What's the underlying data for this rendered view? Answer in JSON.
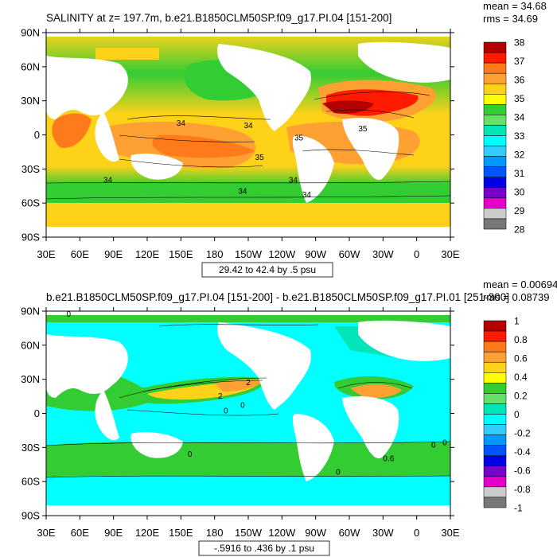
{
  "colors": {
    "ocean_fill_top": "#f5e61e",
    "ocean_fill_bottom": "#33cc33",
    "land": "#ffffff",
    "frame": "#000000"
  },
  "panels": [
    {
      "id": "top",
      "title": "SALINITY at z= 197.7m, b.e21.B1850CLM50SP.f09_g17.PI.04 [151-200]",
      "stats": [
        "mean = 34.68",
        "rms = 34.69"
      ],
      "y_ticks": [
        "90N",
        "60N",
        "30N",
        "0",
        "30S",
        "60S",
        "90S"
      ],
      "x_ticks": [
        "30E",
        "60E",
        "90E",
        "120E",
        "150E",
        "180",
        "150W",
        "120W",
        "90W",
        "60W",
        "30W",
        "0",
        "30E"
      ],
      "range_label": "29.42 to 42.4 by .5 psu",
      "colorbar": {
        "labels": [
          "38",
          "37",
          "36",
          "35",
          "34",
          "33",
          "32",
          "31",
          "30",
          "29",
          "28"
        ],
        "colors": [
          "#b30000",
          "#ff1a00",
          "#ff7a1a",
          "#ffa033",
          "#ffd21a",
          "#ffff00",
          "#33cc33",
          "#66e066",
          "#00e6b8",
          "#00ffff",
          "#33ccff",
          "#0099ff",
          "#0055ff",
          "#0000e6",
          "#7a00cc",
          "#e600cc",
          "#cccccc",
          "#777777"
        ]
      },
      "contour_labels": [
        {
          "text": "34",
          "lon": 150,
          "lat": 8
        },
        {
          "text": "34",
          "lon": 210,
          "lat": 6
        },
        {
          "text": "35",
          "lon": 255,
          "lat": -5
        },
        {
          "text": "35",
          "lon": 220,
          "lat": -22
        },
        {
          "text": "34",
          "lon": 85,
          "lat": -42
        },
        {
          "text": "34",
          "lon": 250,
          "lat": -42
        },
        {
          "text": "34",
          "lon": 205,
          "lat": -52
        },
        {
          "text": "34",
          "lon": 262,
          "lat": -55
        },
        {
          "text": "35",
          "lon": 312,
          "lat": 3
        }
      ]
    },
    {
      "id": "bottom",
      "title": "b.e21.B1850CLM50SP.f09_g17.PI.04 [151-200] - b.e21.B1850CLM50SP.f09_g17.PI.01 [251-300]",
      "stats": [
        "mean = 0.006943",
        "rms = 0.08739"
      ],
      "y_ticks": [
        "90N",
        "60N",
        "30N",
        "0",
        "30S",
        "60S",
        "90S"
      ],
      "x_ticks": [
        "30E",
        "60E",
        "90E",
        "120E",
        "150E",
        "180",
        "150W",
        "120W",
        "90W",
        "60W",
        "30W",
        "0",
        "30E"
      ],
      "range_label": "-.5916 to .436 by .1 psu",
      "colorbar": {
        "labels": [
          "1",
          "0.8",
          "0.6",
          "0.4",
          "0.2",
          "0",
          "-0.2",
          "-0.4",
          "-0.6",
          "-0.8",
          "-1"
        ],
        "colors": [
          "#b30000",
          "#ff1a00",
          "#ff7a1a",
          "#ffa033",
          "#ffd21a",
          "#ffff00",
          "#33cc33",
          "#66e066",
          "#00e6b8",
          "#00ffff",
          "#33ccff",
          "#0099ff",
          "#0055ff",
          "#0000e6",
          "#7a00cc",
          "#e600cc",
          "#cccccc",
          "#777777"
        ]
      },
      "contour_labels": [
        {
          "text": "0",
          "lon": 50,
          "lat": 85
        },
        {
          "text": "2",
          "lon": 185,
          "lat": 13
        },
        {
          "text": "2",
          "lon": 210,
          "lat": 25
        },
        {
          "text": "0",
          "lon": 190,
          "lat": 0
        },
        {
          "text": "0",
          "lon": 205,
          "lat": 5
        },
        {
          "text": "0",
          "lon": 15,
          "lat": -30
        },
        {
          "text": "0",
          "lon": 290,
          "lat": -54
        },
        {
          "text": "0.6",
          "lon": 335,
          "lat": -42
        },
        {
          "text": "0",
          "lon": 158,
          "lat": -38
        },
        {
          "text": "0",
          "lon": 25,
          "lat": -28
        }
      ]
    }
  ]
}
